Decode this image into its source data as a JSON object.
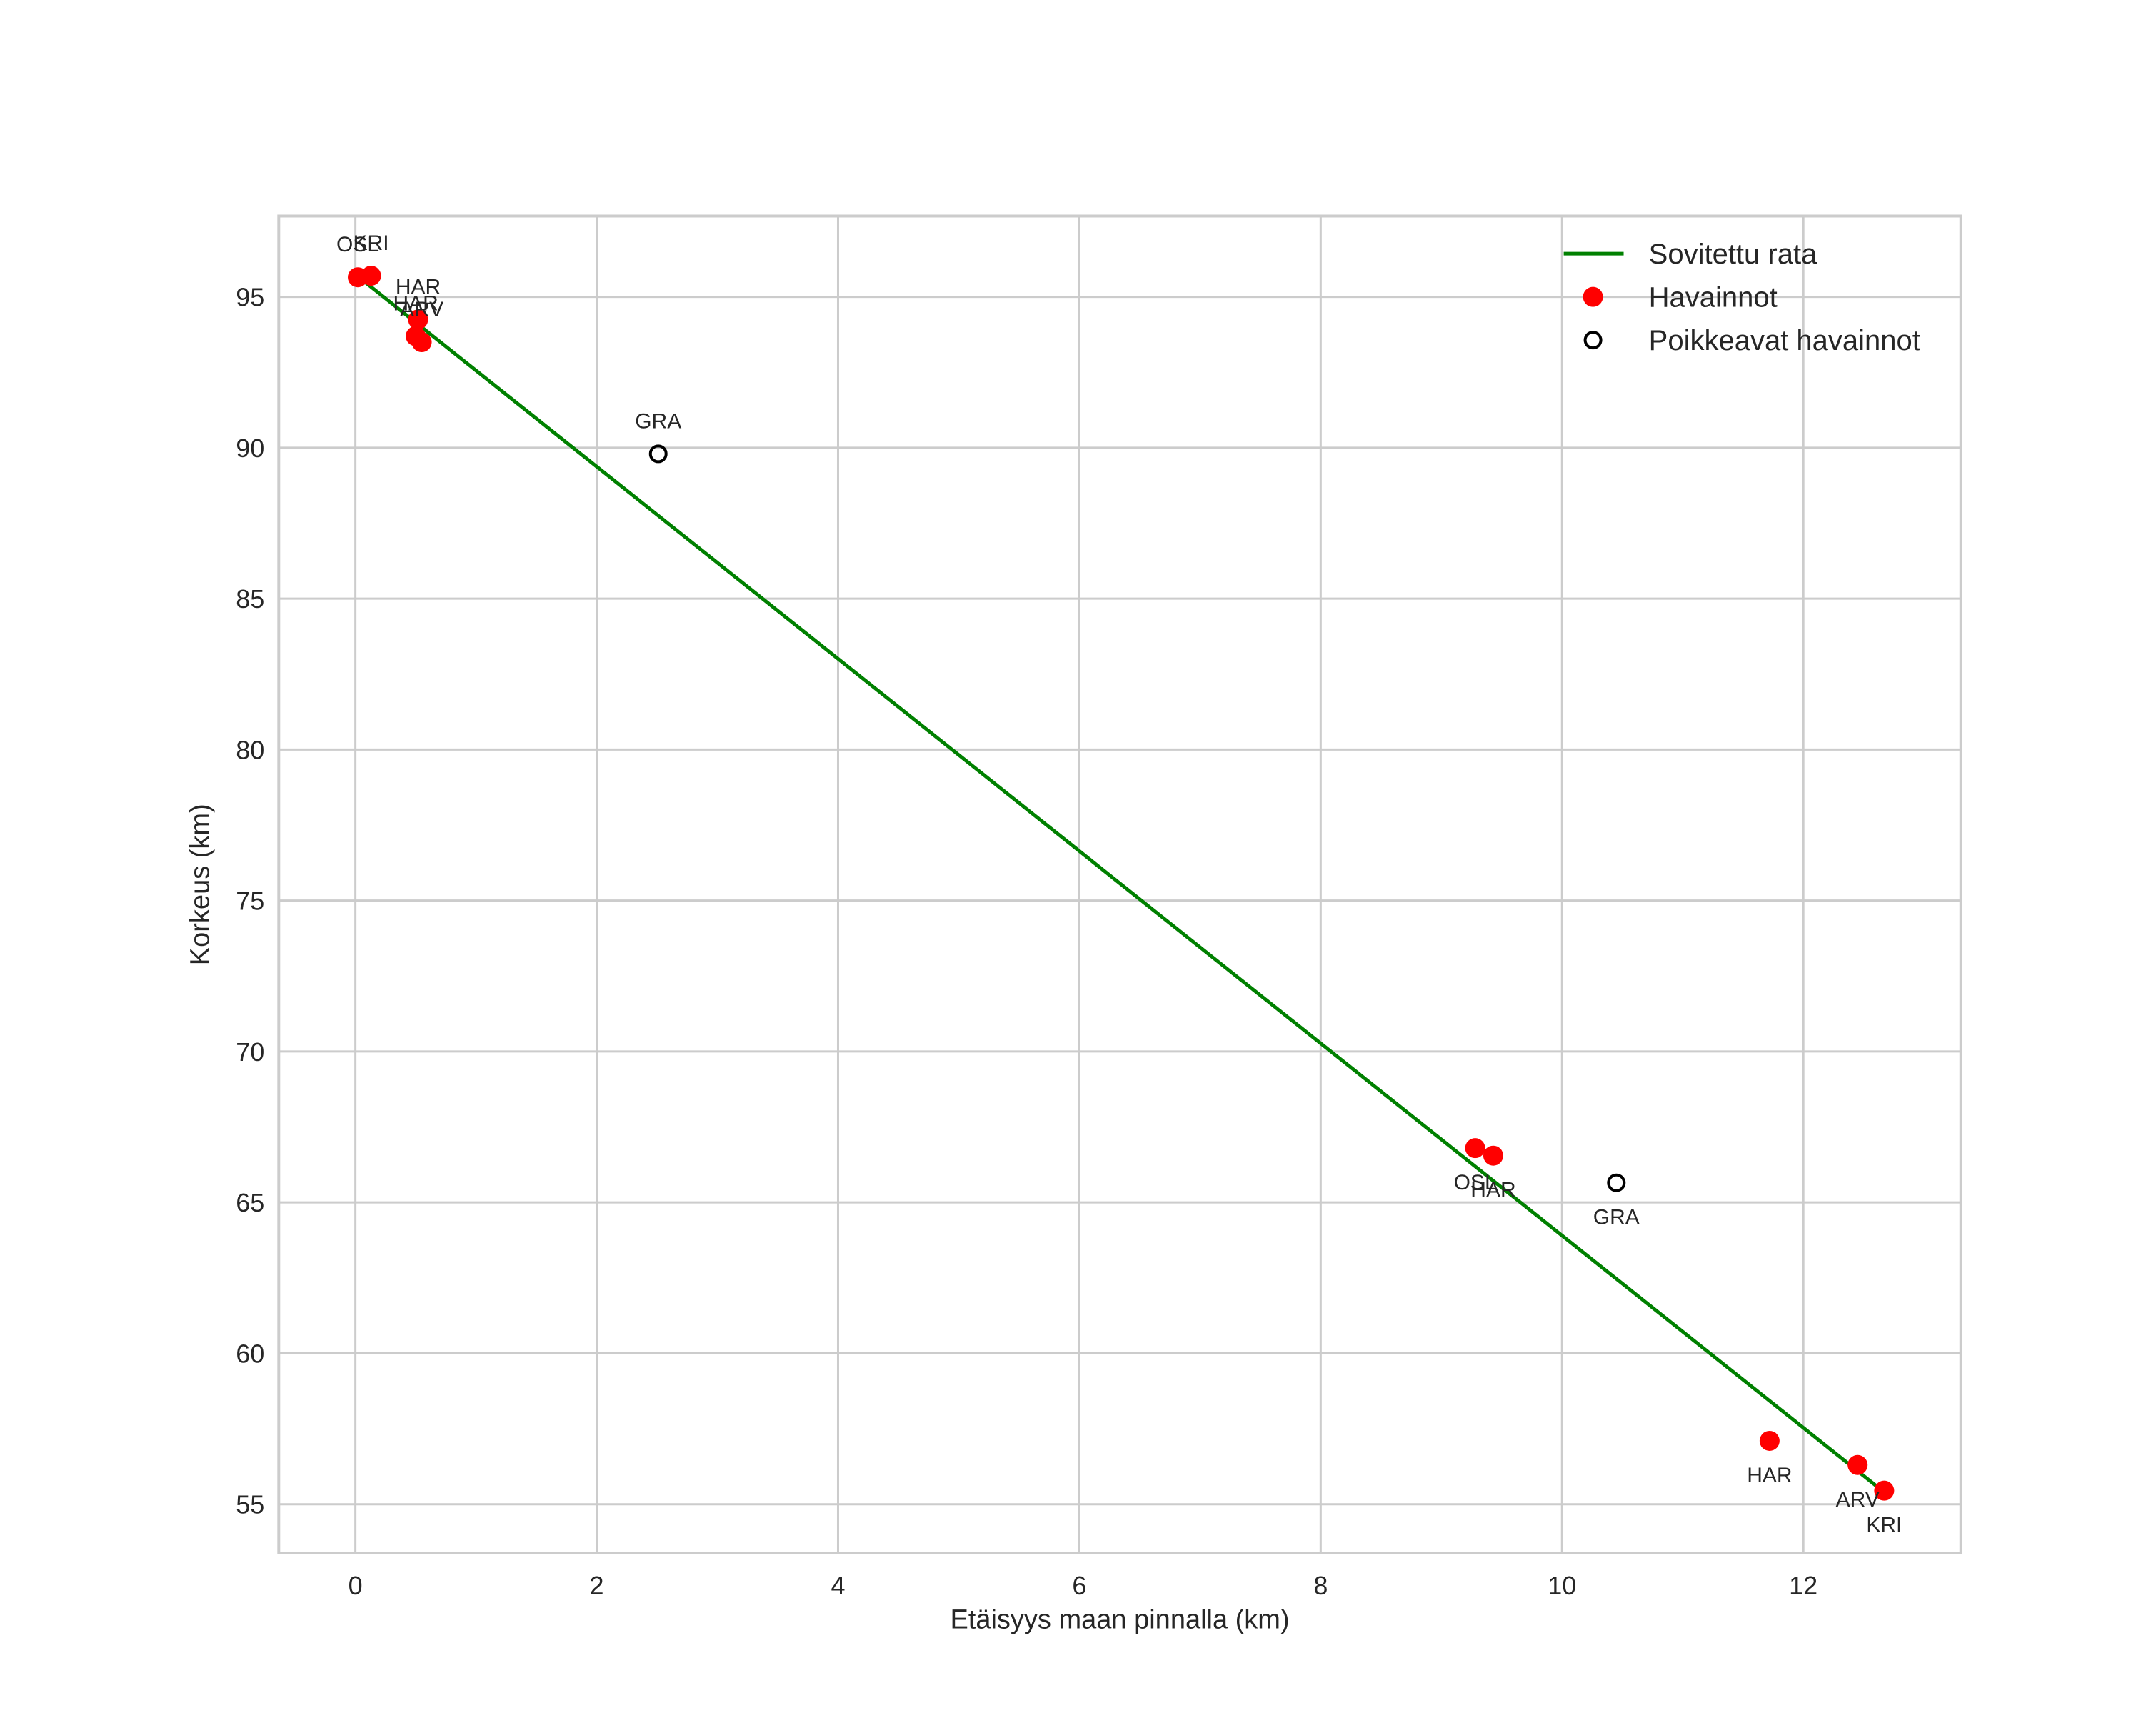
{
  "chart_data": {
    "type": "scatter",
    "title": "",
    "xlabel": "Etäisyys maan pinnalla (km)",
    "ylabel": "Korkeus (km)",
    "xlim": [
      -0.63,
      13.3
    ],
    "ylim": [
      53.4,
      97.7
    ],
    "xticks": [
      0,
      2,
      4,
      6,
      8,
      10,
      12
    ],
    "yticks": [
      55,
      60,
      65,
      70,
      75,
      80,
      85,
      90,
      95
    ],
    "grid": true,
    "legend_position": "upper right",
    "legend": [
      "Sovitettu rata",
      "Havainnot",
      "Poikkeavat havainnot"
    ],
    "series": [
      {
        "name": "Sovitettu rata",
        "type": "line",
        "color": "#008000",
        "x": [
          0.03,
          12.67
        ],
        "y": [
          95.65,
          55.4
        ]
      },
      {
        "name": "Havainnot",
        "type": "scatter",
        "color": "#ff0000",
        "points": [
          {
            "label": "OSL",
            "x": 0.02,
            "y": 95.65,
            "label_pos": "above"
          },
          {
            "label": "KRI",
            "x": 0.13,
            "y": 95.7,
            "label_pos": "above"
          },
          {
            "label": "HAR",
            "x": 0.52,
            "y": 94.25,
            "label_pos": "above"
          },
          {
            "label": "HAR",
            "x": 0.5,
            "y": 93.7,
            "label_pos": "above"
          },
          {
            "label": "ARV",
            "x": 0.55,
            "y": 93.5,
            "label_pos": "above"
          },
          {
            "label": "OSL",
            "x": 9.28,
            "y": 66.8,
            "label_pos": "below"
          },
          {
            "label": "HAR",
            "x": 9.43,
            "y": 66.55,
            "label_pos": "below"
          },
          {
            "label": "HAR",
            "x": 11.72,
            "y": 57.1,
            "label_pos": "below"
          },
          {
            "label": "ARV",
            "x": 12.45,
            "y": 56.3,
            "label_pos": "below"
          },
          {
            "label": "KRI",
            "x": 12.67,
            "y": 55.45,
            "label_pos": "below"
          }
        ]
      },
      {
        "name": "Poikkeavat havainnot",
        "type": "scatter",
        "color": "#000000",
        "marker": "open-circle",
        "points": [
          {
            "label": "GRA",
            "x": 2.51,
            "y": 89.8,
            "label_pos": "above"
          },
          {
            "label": "GRA",
            "x": 10.45,
            "y": 65.65,
            "label_pos": "below"
          }
        ]
      }
    ]
  },
  "colors": {
    "fit_line": "#008000",
    "observations": "#ff0000",
    "outliers": "#000000",
    "grid": "#cccccc",
    "text": "#262626"
  }
}
